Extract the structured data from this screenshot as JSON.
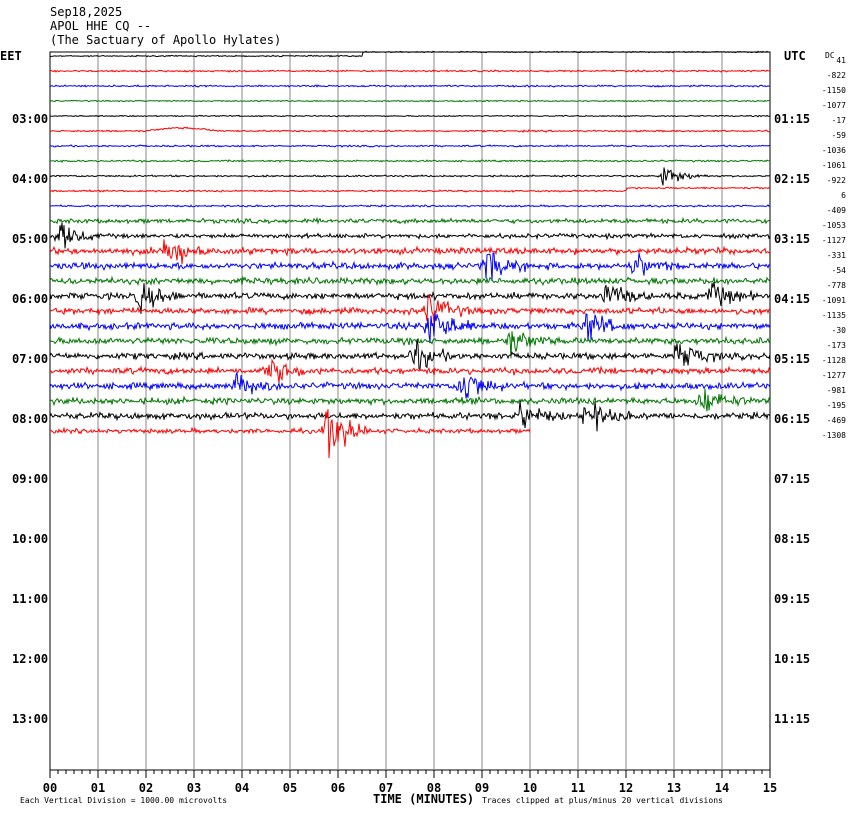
{
  "header": {
    "date": "Sep18,2025",
    "station": "APOL HHE CQ --",
    "site": "(The Sactuary of Apollo Hylates)"
  },
  "left_tz": "EET",
  "right_tz": "UTC",
  "dc_header": "DC",
  "chart_data": {
    "type": "line",
    "title": "APOL HHE CQ --",
    "subtitle": "(The Sactuary of Apollo Hylates)",
    "date": "Sep18,2025",
    "xlabel": "TIME (MINUTES)",
    "x_ticks": [
      "00",
      "01",
      "02",
      "03",
      "04",
      "05",
      "06",
      "07",
      "08",
      "09",
      "10",
      "11",
      "12",
      "13",
      "14",
      "15"
    ],
    "xlim": [
      0,
      15
    ],
    "left_hour_labels": [
      "03:00",
      "04:00",
      "05:00",
      "06:00",
      "07:00",
      "08:00",
      "09:00",
      "10:00",
      "11:00",
      "12:00",
      "13:00"
    ],
    "right_hour_labels": [
      "01:15",
      "02:15",
      "03:15",
      "04:15",
      "05:15",
      "06:15",
      "07:15",
      "08:15",
      "09:15",
      "10:15",
      "11:15"
    ],
    "trace_colors": [
      "#000000",
      "#ff0000",
      "#0000ff",
      "#007700"
    ],
    "dc_offsets": [
      41,
      -822,
      -1150,
      -1077,
      -17,
      -59,
      -1036,
      -1061,
      -922,
      6,
      -409,
      -1053,
      -1127,
      -331,
      -54,
      -778,
      -1091,
      -1135,
      -30,
      -173,
      -1128,
      -1277,
      -981,
      -195,
      -469,
      -1308
    ],
    "trace_count": 26,
    "last_trace_end_minute": 10,
    "scale_note": "Each Vertical Division = 1000.00 microvolts",
    "clip_note": "Traces clipped at plus/minus 20 vertical divisions",
    "events": [
      {
        "trace": 13,
        "minute": 2.4,
        "amp": 18
      },
      {
        "trace": 12,
        "minute": 0.2,
        "amp": 12
      },
      {
        "trace": 14,
        "minute": 9.1,
        "amp": 14
      },
      {
        "trace": 14,
        "minute": 12.2,
        "amp": 10
      },
      {
        "trace": 16,
        "minute": 1.9,
        "amp": 12
      },
      {
        "trace": 16,
        "minute": 11.6,
        "amp": 12
      },
      {
        "trace": 16,
        "minute": 13.8,
        "amp": 11
      },
      {
        "trace": 17,
        "minute": 7.9,
        "amp": 14
      },
      {
        "trace": 18,
        "minute": 7.9,
        "amp": 22
      },
      {
        "trace": 18,
        "minute": 11.2,
        "amp": 14
      },
      {
        "trace": 19,
        "minute": 9.6,
        "amp": 12
      },
      {
        "trace": 20,
        "minute": 7.6,
        "amp": 12
      },
      {
        "trace": 20,
        "minute": 13.1,
        "amp": 14
      },
      {
        "trace": 21,
        "minute": 4.6,
        "amp": 12
      },
      {
        "trace": 22,
        "minute": 8.6,
        "amp": 18
      },
      {
        "trace": 22,
        "minute": 3.9,
        "amp": 10
      },
      {
        "trace": 23,
        "minute": 13.6,
        "amp": 12
      },
      {
        "trace": 24,
        "minute": 9.8,
        "amp": 12
      },
      {
        "trace": 24,
        "minute": 11.2,
        "amp": 14
      },
      {
        "trace": 25,
        "minute": 5.8,
        "amp": 26
      },
      {
        "trace": 8,
        "minute": 12.8,
        "amp": 10
      }
    ]
  }
}
